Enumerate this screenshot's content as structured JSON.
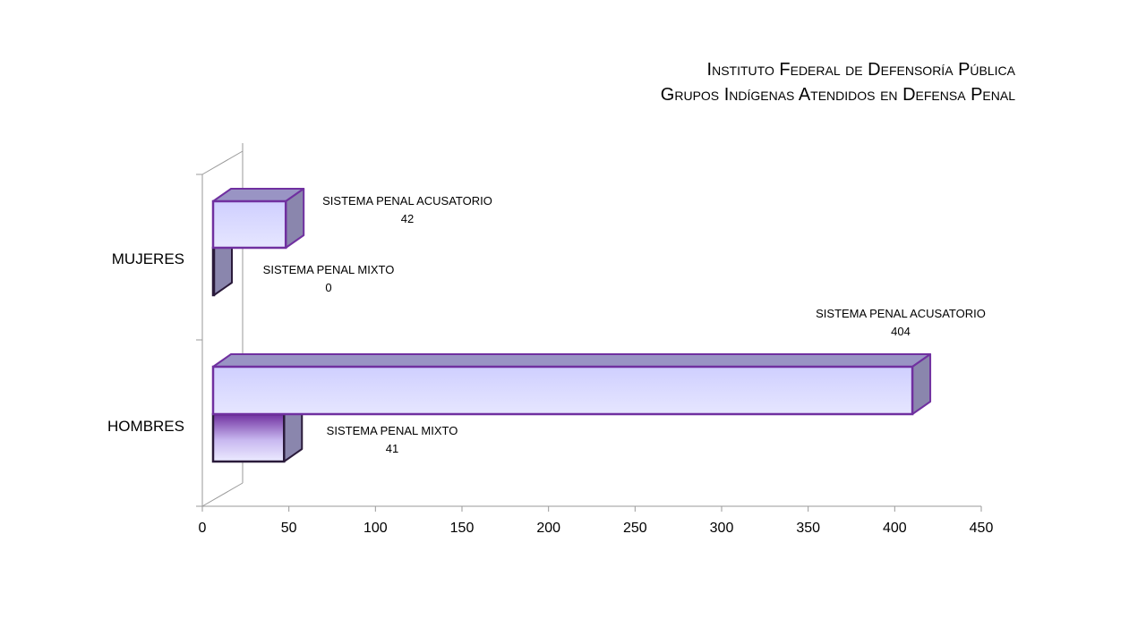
{
  "slide": {
    "title_line1": "Instituto Federal de Defensoría Pública",
    "title_line2": "Grupos Indígenas  Atendidos en Defensa Penal"
  },
  "chart_data": {
    "type": "bar",
    "orientation": "horizontal",
    "categories": [
      "MUJERES",
      "HOMBRES"
    ],
    "series": [
      {
        "name": "SISTEMA PENAL ACUSATORIO",
        "values": [
          42,
          404
        ],
        "data_labels": [
          {
            "name": "SISTEMA PENAL ACUSATORIO",
            "value": "42"
          },
          {
            "name": "SISTEMA PENAL ACUSATORIO",
            "value": "404"
          }
        ]
      },
      {
        "name": "SISTEMA PENAL MIXTO",
        "values": [
          0,
          41
        ],
        "data_labels": [
          {
            "name": "SISTEMA PENAL MIXTO",
            "value": "0"
          },
          {
            "name": "SISTEMA PENAL MIXTO",
            "value": "41"
          }
        ]
      }
    ],
    "xlim": [
      0,
      450
    ],
    "x_ticks": [
      "0",
      "50",
      "100",
      "150",
      "200",
      "250",
      "300",
      "350",
      "400",
      "450"
    ],
    "style": "3d-clustered-bar",
    "grid": false,
    "legend": "none",
    "colors": {
      "acusatorio_fill": "#d4d4ff",
      "acusatorio_side": "#8a86ad",
      "acusatorio_edge": "#7030a0",
      "mixto_top": "#7030a0",
      "mixto_bottom": "#e8e4ff",
      "mixto_edge": "#2a1a3a",
      "axis": "#9a9a9a"
    }
  }
}
